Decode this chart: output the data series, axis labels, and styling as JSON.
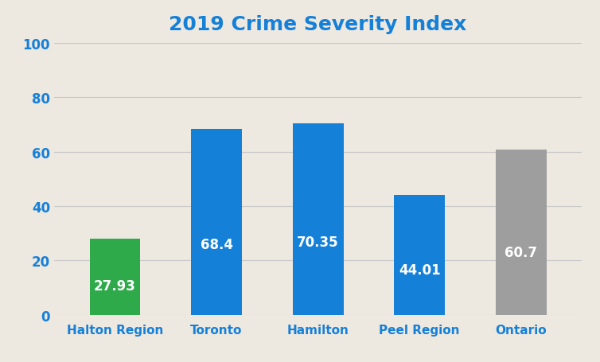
{
  "title": "2019 Crime Severity Index",
  "categories": [
    "Halton Region",
    "Toronto",
    "Hamilton",
    "Peel Region",
    "Ontario"
  ],
  "values": [
    27.93,
    68.4,
    70.35,
    44.01,
    60.7
  ],
  "bar_colors": [
    "#2eaa4a",
    "#1580d8",
    "#1580d8",
    "#1580d8",
    "#9e9e9e"
  ],
  "label_color": "#ffffff",
  "title_color": "#1580d8",
  "axis_label_color": "#1580d8",
  "tick_label_color": "#1580d8",
  "background_color": "#ede8e0",
  "plot_bg_color": "#ede8e0",
  "grid_color": "#c8c8c8",
  "ylim": [
    0,
    100
  ],
  "yticks": [
    0,
    20,
    40,
    60,
    80,
    100
  ],
  "title_fontsize": 18,
  "bar_label_fontsize": 12,
  "tick_fontsize": 12,
  "xlabel_fontsize": 11,
  "bar_width": 0.5
}
